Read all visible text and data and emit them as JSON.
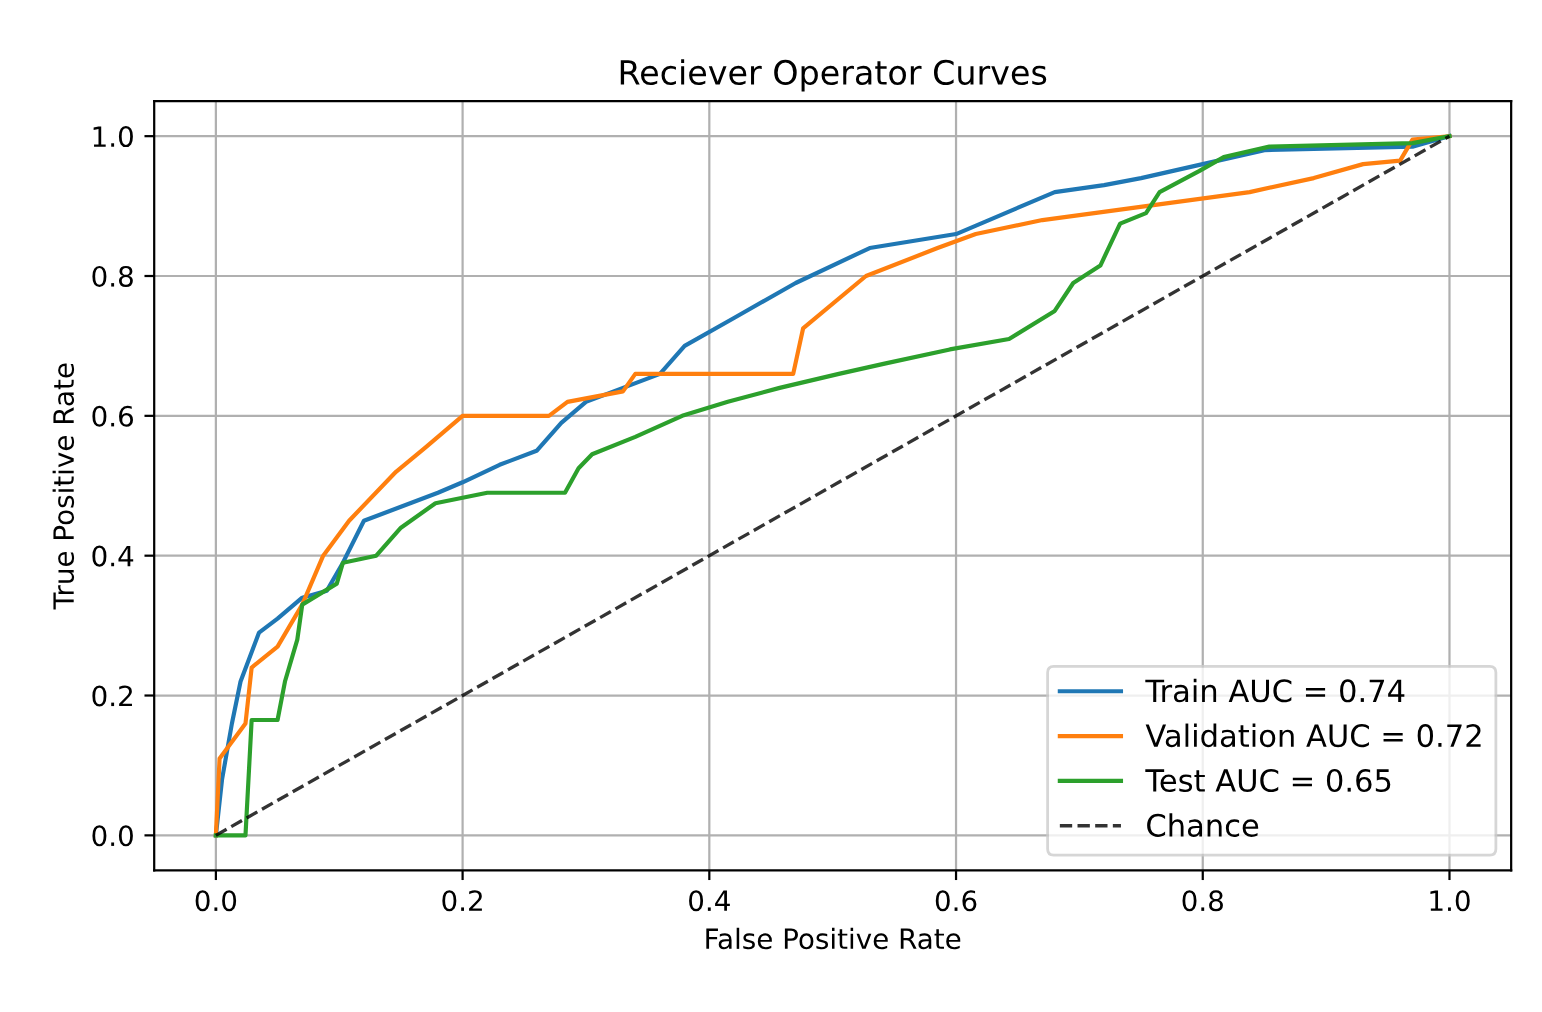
{
  "chart_data": {
    "type": "line",
    "title": "Reciever Operator Curves",
    "xlabel": "False Positive Rate",
    "ylabel": "True Positive Rate",
    "xlim": [
      -0.05,
      1.05
    ],
    "ylim": [
      -0.05,
      1.05
    ],
    "xticks": [
      {
        "value": 0,
        "label": "0.0"
      },
      {
        "value": 0.2,
        "label": "0.2"
      },
      {
        "value": 0.4,
        "label": "0.4"
      },
      {
        "value": 0.6,
        "label": "0.6"
      },
      {
        "value": 0.8,
        "label": "0.8"
      },
      {
        "value": 1,
        "label": "1.0"
      }
    ],
    "yticks": [
      {
        "value": 0,
        "label": "0.0"
      },
      {
        "value": 0.2,
        "label": "0.2"
      },
      {
        "value": 0.4,
        "label": "0.4"
      },
      {
        "value": 0.6,
        "label": "0.6"
      },
      {
        "value": 0.8,
        "label": "0.8"
      },
      {
        "value": 1,
        "label": "1.0"
      }
    ],
    "grid": true,
    "legend": "bottom right",
    "marker": "none",
    "series": [
      {
        "name": "Train AUC = 0.74",
        "color": "#1f77b4",
        "line_style": "solid",
        "x": [
          0,
          0.005,
          0.013,
          0.02,
          0.035,
          0.05,
          0.07,
          0.09,
          0.103,
          0.12,
          0.15,
          0.18,
          0.2,
          0.23,
          0.26,
          0.28,
          0.3,
          0.33,
          0.36,
          0.38,
          0.42,
          0.47,
          0.53,
          0.6,
          0.64,
          0.68,
          0.72,
          0.75,
          0.8,
          0.85,
          0.97,
          1
        ],
        "values": [
          0,
          0.08,
          0.16,
          0.22,
          0.29,
          0.31,
          0.34,
          0.35,
          0.39,
          0.45,
          0.47,
          0.49,
          0.505,
          0.53,
          0.55,
          0.59,
          0.62,
          0.64,
          0.66,
          0.7,
          0.74,
          0.79,
          0.84,
          0.86,
          0.89,
          0.92,
          0.93,
          0.94,
          0.96,
          0.98,
          0.985,
          1
        ]
      },
      {
        "name": "Validation AUC = 0.72",
        "color": "#ff7f0e",
        "line_style": "solid",
        "x": [
          0,
          0.003,
          0.024,
          0.029,
          0.05,
          0.07,
          0.087,
          0.108,
          0.146,
          0.17,
          0.2,
          0.27,
          0.285,
          0.33,
          0.34,
          0.468,
          0.476,
          0.527,
          0.585,
          0.616,
          0.67,
          0.838,
          0.89,
          0.93,
          0.96,
          0.97,
          1
        ],
        "values": [
          0,
          0.11,
          0.16,
          0.24,
          0.27,
          0.33,
          0.4,
          0.45,
          0.52,
          0.555,
          0.6,
          0.6,
          0.62,
          0.635,
          0.66,
          0.66,
          0.725,
          0.8,
          0.84,
          0.86,
          0.88,
          0.92,
          0.94,
          0.96,
          0.965,
          0.995,
          1
        ]
      },
      {
        "name": "Test AUC = 0.65",
        "color": "#2ca02c",
        "line_style": "solid",
        "x": [
          0,
          0.024,
          0.029,
          0.05,
          0.056,
          0.066,
          0.07,
          0.098,
          0.103,
          0.13,
          0.15,
          0.178,
          0.22,
          0.283,
          0.294,
          0.305,
          0.34,
          0.378,
          0.415,
          0.457,
          0.505,
          0.543,
          0.595,
          0.643,
          0.68,
          0.695,
          0.717,
          0.733,
          0.754,
          0.765,
          0.797,
          0.817,
          0.854,
          0.97,
          1
        ],
        "values": [
          0,
          0,
          0.165,
          0.165,
          0.22,
          0.28,
          0.33,
          0.36,
          0.39,
          0.4,
          0.44,
          0.475,
          0.49,
          0.49,
          0.525,
          0.545,
          0.57,
          0.6,
          0.62,
          0.64,
          0.66,
          0.675,
          0.695,
          0.71,
          0.75,
          0.79,
          0.815,
          0.875,
          0.89,
          0.92,
          0.95,
          0.97,
          0.985,
          0.99,
          1
        ]
      },
      {
        "name": "Chance",
        "color": "#000000",
        "line_style": "dashed",
        "x": [
          0,
          1
        ],
        "values": [
          0,
          1
        ]
      }
    ]
  }
}
